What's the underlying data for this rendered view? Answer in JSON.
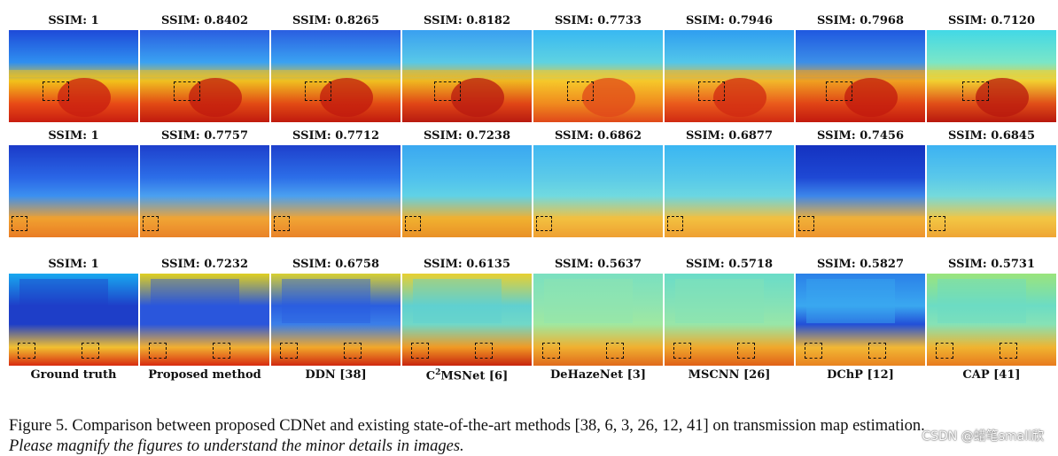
{
  "figure": {
    "rows": [
      {
        "ssim": [
          "SSIM: 1",
          "SSIM: 0.8402",
          "SSIM: 0.8265",
          "SSIM: 0.8182",
          "SSIM: 0.7733",
          "SSIM: 0.7946",
          "SSIM: 0.7968",
          "SSIM: 0.7120"
        ]
      },
      {
        "ssim": [
          "SSIM: 1",
          "SSIM: 0.7757",
          "SSIM: 0.7712",
          "SSIM: 0.7238",
          "SSIM: 0.6862",
          "SSIM: 0.6877",
          "SSIM: 0.7456",
          "SSIM: 0.6845"
        ]
      },
      {
        "ssim": [
          "SSIM: 1",
          "SSIM: 0.7232",
          "SSIM: 0.6758",
          "SSIM: 0.6135",
          "SSIM: 0.5637",
          "SSIM: 0.5718",
          "SSIM: 0.5827",
          "SSIM: 0.5731"
        ]
      }
    ],
    "methods": [
      "Ground truth",
      "Proposed method",
      "DDN [38]",
      "MSNet [6]",
      "DeHazeNet [3]",
      "MSCNN [26]",
      "DChP [12]",
      "CAP [41]"
    ],
    "c2_prefix": "C",
    "c2_sup": "2"
  },
  "caption": {
    "line1": "Figure 5. Comparison between proposed CDNet and existing state-of-the-art methods [38, 6, 3, 26, 12, 41] on transmission map estimation.",
    "line2": "Please magnify the figures to understand the minor details in images."
  },
  "watermark": "CSDN @蜡笔small欣"
}
